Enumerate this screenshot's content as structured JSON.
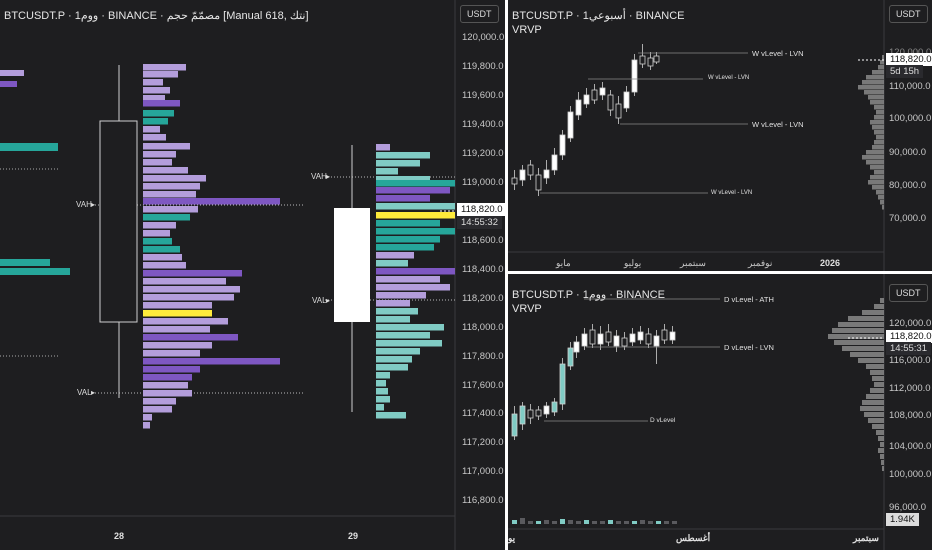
{
  "left_pane": {
    "title": "BTCUSDT.P · 1ووم · BINANCE · مصمّمّ حجم [Manual 618, نتك]",
    "currency": "USDT",
    "price_ticks": [
      "120,000.0",
      "119,800.0",
      "119,600.0",
      "119,400.0",
      "119,200.0",
      "119,000.0",
      "118,600.0",
      "118,400.0",
      "118,200.0",
      "118,000.0",
      "117,800.0",
      "117,600.0",
      "117,400.0",
      "117,200.0",
      "117,000.0",
      "116,800.0"
    ],
    "current_price": "118,820.0",
    "countdown": "14:55:32",
    "x_labels": [
      "28",
      "29"
    ],
    "vah_label": "VAH",
    "val_label": "VAL"
  },
  "top_right_pane": {
    "title": "BTCUSDT.P · 1أسبوعي · BINANCE",
    "indicator": "VRVP",
    "currency": "USDT",
    "price_ticks": [
      "110,000.0",
      "100,000.0",
      "90,000.0",
      "80,000.0",
      "70,000.0"
    ],
    "top_tick": "120,000.0",
    "current_price": "118,820.0",
    "countdown": "5d 15h",
    "x_labels": [
      "مايو",
      "يوليو",
      "سبتمبر",
      "نوفمبر",
      "2026"
    ],
    "level_labels": [
      "W vLevel - LVN",
      "W vLevel - LVN",
      "W vLevel - LVN",
      "W vLevel - LVN"
    ]
  },
  "bottom_right_pane": {
    "title": "BTCUSDT.P · 1ووم · BINANCE",
    "indicator": "VRVP",
    "currency": "USDT",
    "price_ticks": [
      "120,000.0",
      "116,000.0",
      "112,000.0",
      "108,000.0",
      "104,000.0",
      "100,000.0",
      "96,000.0"
    ],
    "current_price": "118,820.0",
    "countdown": "14:55:31",
    "volume_value": "1.94K",
    "x_labels": [
      "يو",
      "أغسطس",
      "سبتمبر"
    ],
    "level_labels": [
      "D vLevel - ATH",
      "D vLevel - LVN",
      "D vLevel"
    ]
  },
  "colors": {
    "background": "#1e1e20",
    "teal": "#26a69a",
    "purple": "#7e57c2",
    "light_purple": "#b39ddb",
    "yellow": "#ffeb3b",
    "mint": "#80cbc4",
    "profile_gray": "#8a8a8a"
  }
}
